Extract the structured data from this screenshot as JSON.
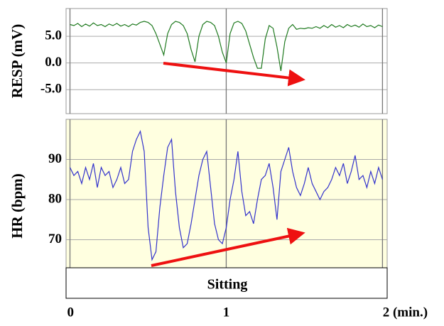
{
  "chart_data": [
    {
      "type": "line",
      "ylabel": "RESP (mV)",
      "background": "#ffffff",
      "x": [
        0,
        0.025,
        0.05,
        0.075,
        0.1,
        0.125,
        0.15,
        0.175,
        0.2,
        0.225,
        0.25,
        0.275,
        0.3,
        0.325,
        0.35,
        0.375,
        0.4,
        0.425,
        0.45,
        0.475,
        0.5,
        0.525,
        0.55,
        0.575,
        0.6,
        0.625,
        0.65,
        0.675,
        0.7,
        0.725,
        0.75,
        0.775,
        0.8,
        0.825,
        0.85,
        0.875,
        0.9,
        0.925,
        0.95,
        0.975,
        1,
        1.025,
        1.05,
        1.075,
        1.1,
        1.125,
        1.15,
        1.175,
        1.2,
        1.225,
        1.25,
        1.275,
        1.3,
        1.325,
        1.35,
        1.375,
        1.4,
        1.425,
        1.45,
        1.475,
        1.5,
        1.525,
        1.55,
        1.575,
        1.6,
        1.625,
        1.65,
        1.675,
        1.7,
        1.725,
        1.75,
        1.775,
        1.8,
        1.825,
        1.85,
        1.875,
        1.9,
        1.925,
        1.95,
        1.975,
        2
      ],
      "series": [
        {
          "name": "RESP",
          "color": "#1f7a1f",
          "values": [
            7.2,
            7.0,
            7.4,
            6.8,
            7.3,
            6.9,
            7.5,
            7.0,
            7.2,
            6.8,
            7.3,
            7.0,
            7.4,
            6.9,
            7.2,
            6.8,
            7.3,
            7.1,
            7.6,
            7.8,
            7.6,
            7.0,
            5.5,
            3.5,
            1.5,
            5.5,
            7.2,
            7.8,
            7.6,
            7.0,
            5.5,
            2.5,
            0.2,
            5.0,
            7.2,
            7.8,
            7.6,
            7.0,
            5.0,
            2.0,
            0.0,
            5.5,
            7.5,
            7.8,
            7.4,
            6.0,
            3.5,
            1.0,
            -1.0,
            -1.0,
            4.5,
            7.0,
            6.5,
            3.0,
            -1.5,
            4.0,
            6.5,
            7.2,
            6.3,
            6.5,
            6.4,
            6.6,
            6.5,
            6.8,
            6.5,
            7.0,
            6.6,
            7.2,
            6.7,
            7.0,
            6.6,
            7.2,
            6.8,
            7.1,
            6.7,
            7.3,
            6.8,
            7.0,
            6.6,
            7.1,
            6.8
          ]
        }
      ],
      "xlim": [
        -0.025,
        2.03
      ],
      "ylim": [
        -9.5,
        10.2
      ],
      "yticks": [
        {
          "value": 5,
          "label": "5.0"
        },
        {
          "value": 0,
          "label": "0.0"
        },
        {
          "value": -5,
          "label": "-5.0"
        }
      ],
      "grid": true
    },
    {
      "type": "line",
      "ylabel": "HR (bpm)",
      "background": "#ffffe0",
      "annotation": "Sitting",
      "x": [
        0,
        0.025,
        0.05,
        0.075,
        0.1,
        0.125,
        0.15,
        0.175,
        0.2,
        0.225,
        0.25,
        0.275,
        0.3,
        0.325,
        0.35,
        0.375,
        0.4,
        0.425,
        0.45,
        0.475,
        0.5,
        0.525,
        0.55,
        0.575,
        0.6,
        0.625,
        0.65,
        0.675,
        0.7,
        0.725,
        0.75,
        0.775,
        0.8,
        0.825,
        0.85,
        0.875,
        0.9,
        0.925,
        0.95,
        0.975,
        1,
        1.025,
        1.05,
        1.075,
        1.1,
        1.125,
        1.15,
        1.175,
        1.2,
        1.225,
        1.25,
        1.275,
        1.3,
        1.325,
        1.35,
        1.375,
        1.4,
        1.425,
        1.45,
        1.475,
        1.5,
        1.525,
        1.55,
        1.575,
        1.6,
        1.625,
        1.65,
        1.675,
        1.7,
        1.725,
        1.75,
        1.775,
        1.8,
        1.825,
        1.85,
        1.875,
        1.9,
        1.925,
        1.95,
        1.975,
        2
      ],
      "series": [
        {
          "name": "HR",
          "color": "#3333cc",
          "values": [
            88,
            86,
            87,
            84,
            88,
            85,
            89,
            83,
            88,
            86,
            87,
            83,
            85,
            88,
            84,
            85,
            92,
            95,
            97,
            92,
            73,
            65,
            67,
            78,
            86,
            93,
            95,
            82,
            73,
            68,
            69,
            74,
            80,
            86,
            90,
            92,
            83,
            74,
            70,
            69,
            73,
            80,
            85,
            92,
            82,
            76,
            77,
            74,
            80,
            85,
            86,
            89,
            83,
            75,
            87,
            90,
            93,
            87,
            83,
            81,
            84,
            88,
            84,
            82,
            80,
            82,
            83,
            85,
            88,
            86,
            89,
            84,
            87,
            91,
            85,
            86,
            83,
            87,
            84,
            88,
            85
          ]
        }
      ],
      "xlim": [
        -0.025,
        2.03
      ],
      "ylim": [
        63,
        100
      ],
      "xticks": [
        0,
        1,
        {
          "value": 2,
          "label": "2 (min.)"
        }
      ],
      "yticks": [
        90,
        80,
        70
      ],
      "grid": true
    }
  ]
}
